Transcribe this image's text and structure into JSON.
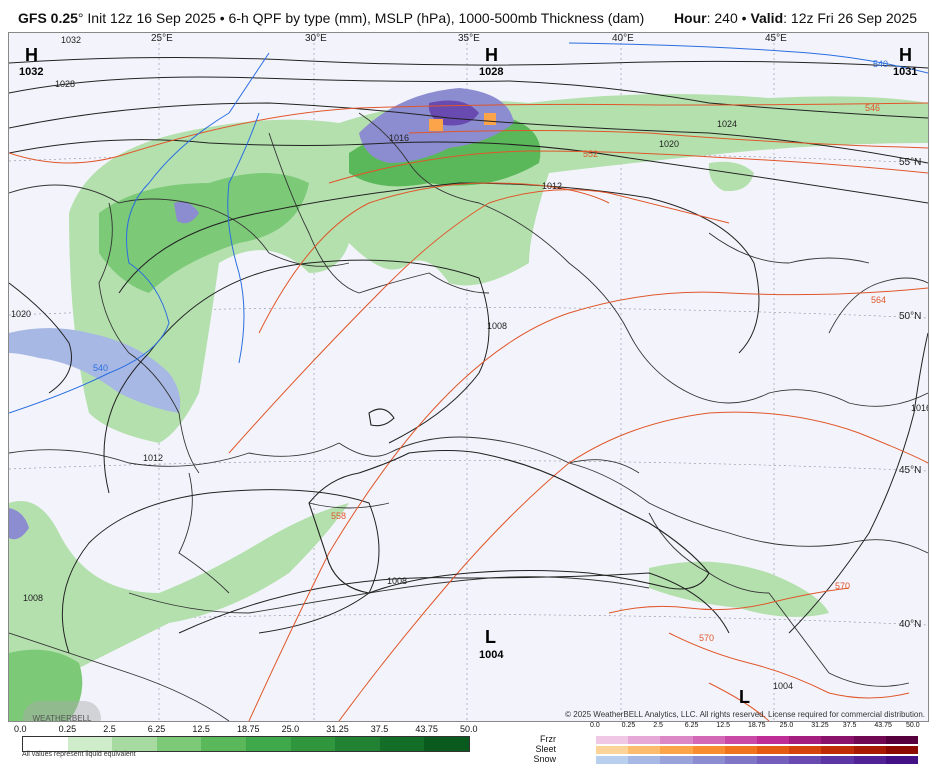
{
  "header": {
    "model": "GFS 0.25",
    "degree": "°",
    "init": " Init 12z 16 Sep 2025 • 6-h QPF by type (mm), MSLP (hPa), 1000-500mb Thickness (dam)",
    "hour_label": "Hour",
    "hour_value": ": 240 • ",
    "valid_label": "Valid",
    "valid_value": ": 12z Fri 26 Sep 2025"
  },
  "map": {
    "lon_labels": [
      "25°E",
      "30°E",
      "35°E",
      "40°E",
      "45°E"
    ],
    "lat_labels": [
      "55°N",
      "50°N",
      "45°N",
      "40°N"
    ],
    "pressure_centers": [
      {
        "type": "H",
        "value": "1032",
        "color": "#1a3cc8"
      },
      {
        "type": "H",
        "value": "1028",
        "color": "#1a3cc8"
      },
      {
        "type": "H",
        "value": "1031",
        "color": "#1a3cc8"
      },
      {
        "type": "L",
        "value": "1004",
        "color": "#d11a1a"
      },
      {
        "type": "L",
        "value": "",
        "color": "#d11a1a"
      }
    ],
    "isobar_labels": [
      "1032",
      "1028",
      "1024",
      "1020",
      "1016",
      "1012",
      "1008",
      "1008",
      "1012",
      "1008",
      "1016",
      "1020",
      "1004"
    ],
    "thickness_labels": [
      "540",
      "546",
      "552",
      "558",
      "564",
      "570",
      "570",
      "540"
    ],
    "copyright": "© 2025 WeatherBELL Analytics, LLC. All rights reserved. License required for commercial distribution.",
    "logo_text": "WEATHERBELL"
  },
  "legend": {
    "rain_ticks": [
      "0.0",
      "0.25",
      "2.5",
      "6.25",
      "12.5",
      "18.75",
      "25.0",
      "31.25",
      "37.5",
      "43.75",
      "50.0"
    ],
    "rain_colors": [
      "#ffffff",
      "#cfeccb",
      "#a6daa0",
      "#7cc978",
      "#5bb85a",
      "#3fa84a",
      "#2f963e",
      "#208232",
      "#146e27",
      "#0b5a1d"
    ],
    "rain_note": "All values represent liquid equivalent",
    "ptype_ticks": [
      "0.0",
      "0.25",
      "2.5",
      "6.25",
      "12.5",
      "18.75",
      "25.0",
      "31.25",
      "37.5",
      "43.75",
      "50.0"
    ],
    "ptypes": [
      {
        "name": "Frzr",
        "colors": [
          "#f0c8e6",
          "#e6a8d6",
          "#dc88c6",
          "#d268b6",
          "#c84aa6",
          "#be2c96",
          "#a41e80",
          "#8a126a",
          "#700854",
          "#56003e"
        ]
      },
      {
        "name": "Sleet",
        "colors": [
          "#fcd49a",
          "#fcbc70",
          "#fca44a",
          "#f88c30",
          "#f07420",
          "#e45c14",
          "#d4440c",
          "#c02c06",
          "#a81a02",
          "#8c0a00"
        ]
      },
      {
        "name": "Snow",
        "colors": [
          "#b8d0ee",
          "#a8b8e4",
          "#9aa2da",
          "#8c8cd0",
          "#8076c6",
          "#7460bc",
          "#684ab0",
          "#5c36a4",
          "#502296",
          "#441086"
        ]
      }
    ]
  }
}
